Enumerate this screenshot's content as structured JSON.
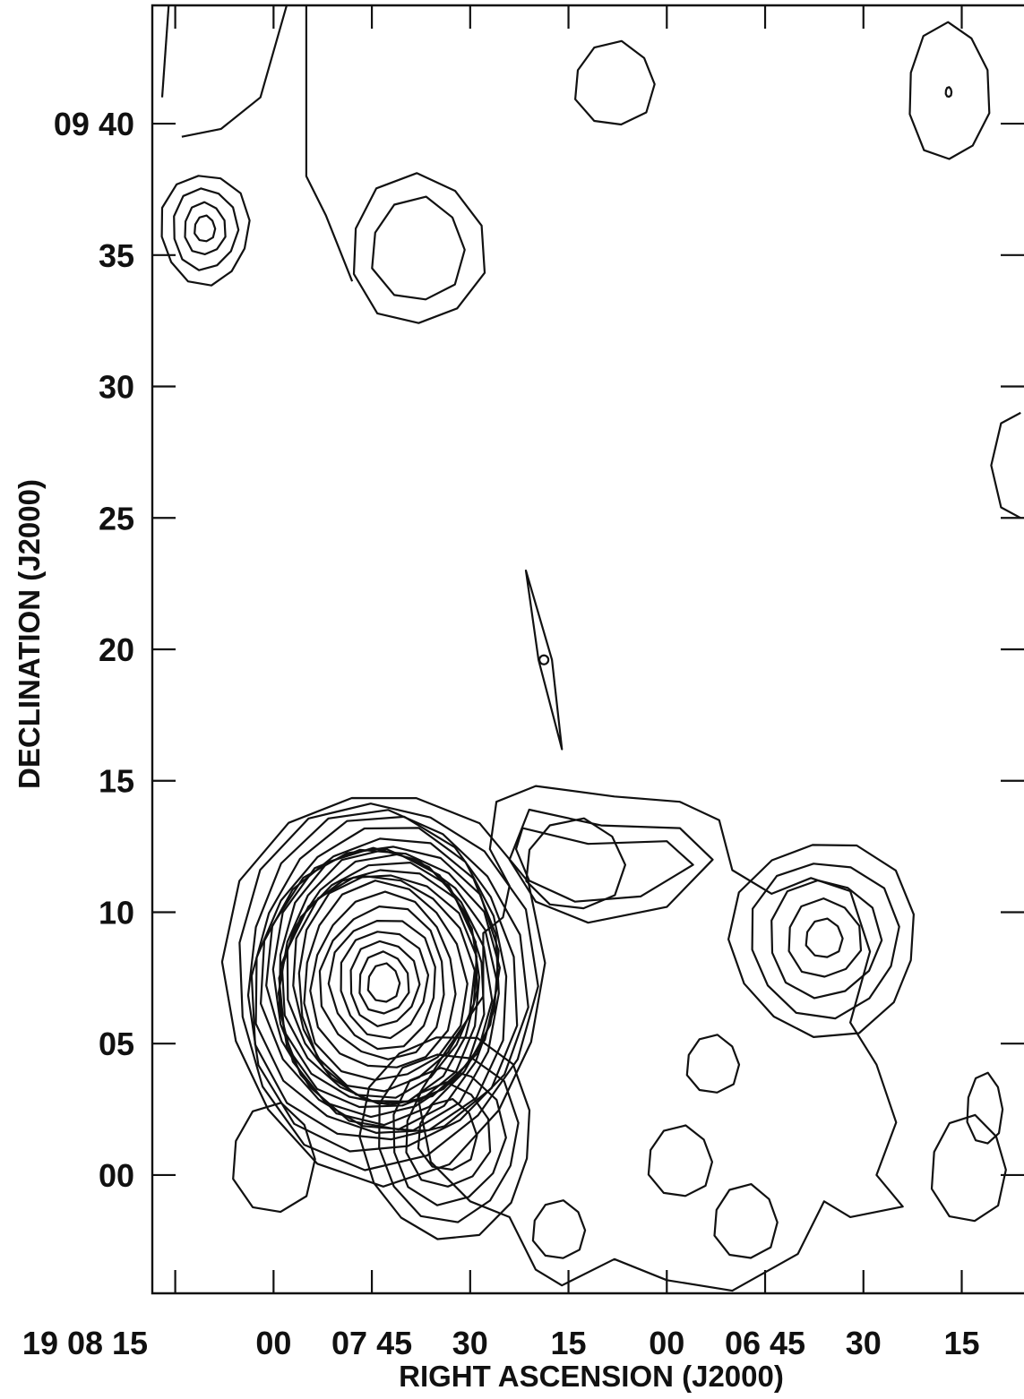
{
  "chart_data": {
    "type": "contour",
    "title": "",
    "xlabel": "RIGHT ASCENSION (J2000)",
    "ylabel": "DECLINATION (J2000)",
    "x_ticks": [
      "19 08 15",
      "00",
      "07 45",
      "30",
      "15",
      "00",
      "06 45",
      "30",
      "15"
    ],
    "y_ticks": [
      "09 40",
      "35",
      "30",
      "25",
      "20",
      "15",
      "10",
      "05",
      "00"
    ],
    "x_tick_seconds": [
      495,
      480,
      465,
      450,
      435,
      420,
      405,
      390,
      375
    ],
    "y_tick_minutes": [
      40,
      35,
      30,
      25,
      20,
      15,
      10,
      5,
      0
    ],
    "x_range_seconds": [
      498.5,
      365.5
    ],
    "y_range_minutes": [
      -4.5,
      44.5
    ],
    "sources": [
      {
        "id": "bright-compact-source",
        "ra_s": 463.2,
        "dec_m": 7.3,
        "rings": [
          1.2,
          1.9,
          2.6,
          3.3,
          4.0,
          4.7,
          5.4,
          6.1,
          6.6,
          6.9,
          7.2,
          7.45,
          7.7,
          7.95,
          8.2,
          8.45,
          8.7,
          9.0,
          9.5,
          10.0,
          10.5,
          11.2,
          12.0
        ],
        "aspect": 0.82
      },
      {
        "id": "southern-companion",
        "ra_s": 453.5,
        "dec_m": 1.5,
        "rings": [
          2.2,
          3.2,
          4.2,
          5.2,
          6.3
        ],
        "aspect": 0.83
      },
      {
        "id": "eastern-ridge-peak",
        "ra_s": 434.0,
        "dec_m": 11.8,
        "rings": [
          2.8
        ],
        "aspect": 1.1
      },
      {
        "id": "central-ridge-peak",
        "ra_s": 396.0,
        "dec_m": 9.0,
        "rings": [
          1.2,
          2.4,
          3.6,
          4.8,
          6.0
        ],
        "aspect": 0.95
      },
      {
        "id": "northwest-source",
        "ra_s": 490.5,
        "dec_m": 36.0,
        "rings": [
          0.8,
          1.6,
          2.5,
          3.4
        ],
        "aspect": 0.8
      },
      {
        "id": "northern-source",
        "ra_s": 458.0,
        "dec_m": 35.2,
        "rings": [
          3.2,
          4.6
        ],
        "aspect": 0.9
      },
      {
        "id": "north-peak",
        "ra_s": 428.0,
        "dec_m": 41.5,
        "rings": [
          2.6
        ],
        "aspect": 0.95
      },
      {
        "id": "northeast-source",
        "ra_s": 377.0,
        "dec_m": 41.2,
        "rings": [
          0.3,
          4.2
        ],
        "aspect": 0.6
      },
      {
        "id": "southwest-blob",
        "ra_s": 480.0,
        "dec_m": 0.6,
        "rings": [
          3.4
        ],
        "aspect": 0.75
      },
      {
        "id": "blob-a",
        "ra_s": 413.0,
        "dec_m": 4.2,
        "rings": [
          1.8
        ],
        "aspect": 0.9
      },
      {
        "id": "blob-b",
        "ra_s": 418.0,
        "dec_m": 0.5,
        "rings": [
          2.2
        ],
        "aspect": 0.9
      },
      {
        "id": "blob-c",
        "ra_s": 408.0,
        "dec_m": -1.8,
        "rings": [
          2.3
        ],
        "aspect": 0.85
      },
      {
        "id": "blob-d",
        "ra_s": 436.5,
        "dec_m": -2.1,
        "rings": [
          1.8
        ],
        "aspect": 0.9
      },
      {
        "id": "blob-e",
        "ra_s": 374.0,
        "dec_m": 0.2,
        "rings": [
          3.3
        ],
        "aspect": 0.7
      },
      {
        "id": "blob-f",
        "ra_s": 371.5,
        "dec_m": 2.5,
        "rings": [
          2.2
        ],
        "aspect": 0.5
      }
    ]
  }
}
